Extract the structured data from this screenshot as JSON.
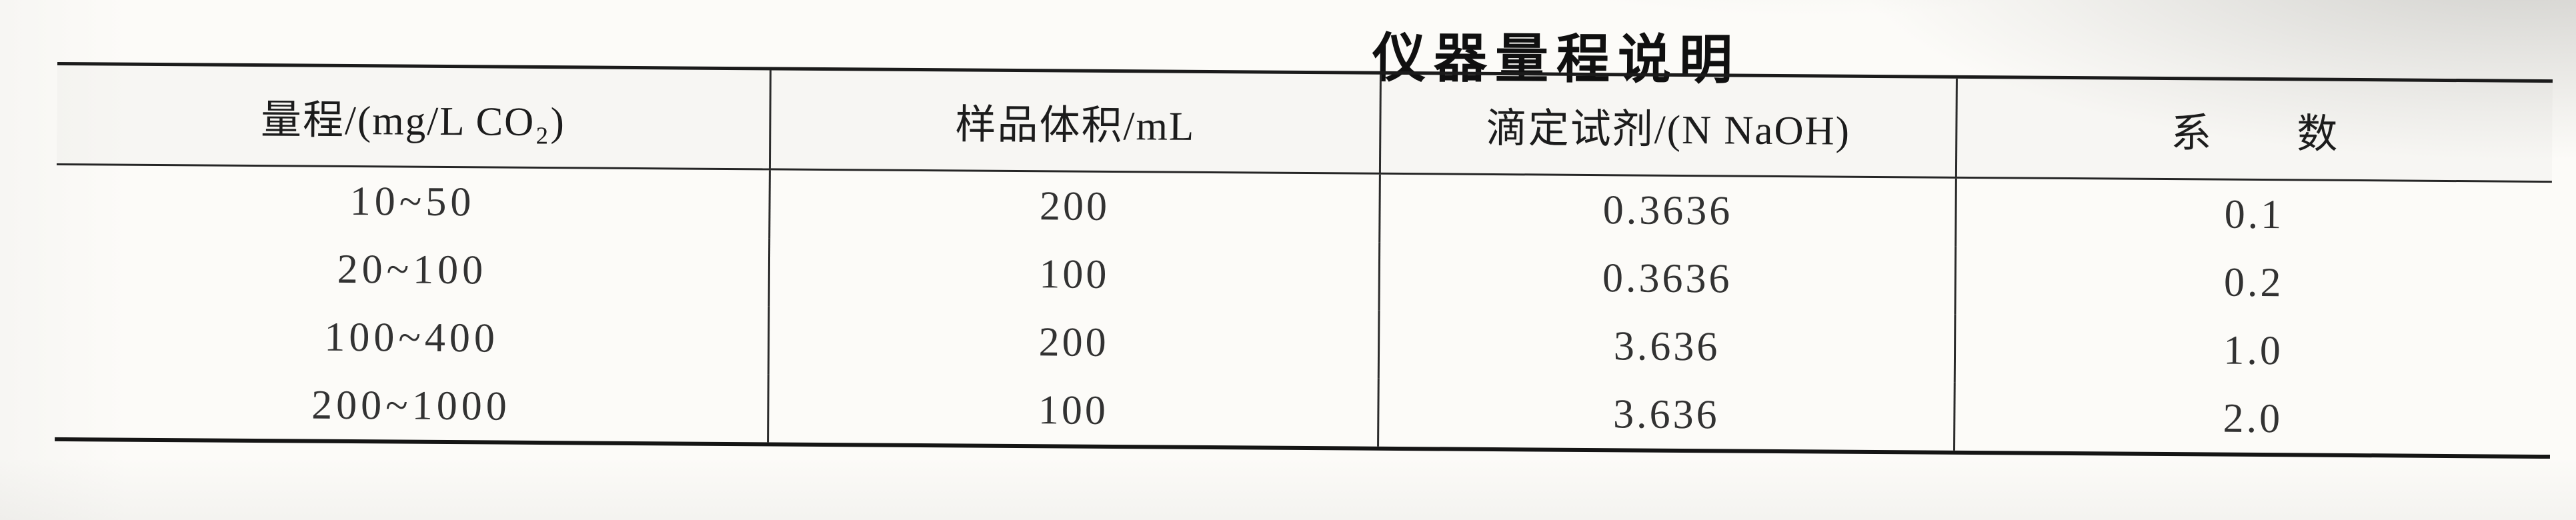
{
  "page_title": "仪器量程说明",
  "table": {
    "columns": [
      {
        "label": "量程/(mg/L CO₂)"
      },
      {
        "label": "样品体积/mL"
      },
      {
        "label": "滴定试剂/(N NaOH)"
      },
      {
        "label": "系　　数"
      }
    ],
    "rows": [
      {
        "range": "10~50",
        "sample_volume_ml": "200",
        "titrant": "0.3636",
        "coefficient": "0.1"
      },
      {
        "range": "20~100",
        "sample_volume_ml": "100",
        "titrant": "0.3636",
        "coefficient": "0.2"
      },
      {
        "range": "100~400",
        "sample_volume_ml": "200",
        "titrant": "3.636",
        "coefficient": "1.0"
      },
      {
        "range": "200~1000",
        "sample_volume_ml": "100",
        "titrant": "3.636",
        "coefficient": "2.0"
      }
    ]
  }
}
